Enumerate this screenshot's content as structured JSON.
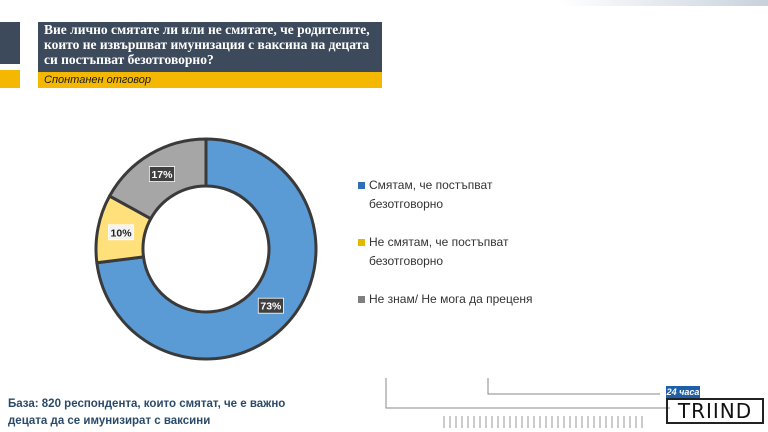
{
  "header": {
    "question": "Вие лично смятате ли или не смятате, че родителите, които не извършват имунизация с ваксина на децата си постъпват безотговорно?",
    "subtitle": "Спонтанен отговор"
  },
  "chart_data": {
    "type": "pie",
    "variant": "donut",
    "categories": [
      "Смятам, че постъпват безотговорно",
      "Не смятам, че постъпват безотговорно",
      "Не знам/ Не мога да преценя"
    ],
    "values": [
      73,
      10,
      17
    ],
    "value_labels": [
      "73%",
      "10%",
      "17%"
    ],
    "colors": [
      "#5b9bd5",
      "#ffe07a",
      "#a6a6a6"
    ],
    "legend_position": "right",
    "start": "top, clockwise"
  },
  "footer": {
    "base_note": "База: 820 респондента, които смятат, че е важно децата да се имунизират с ваксини"
  },
  "logo": {
    "badge": "24 часа",
    "word": "TRIIND"
  }
}
